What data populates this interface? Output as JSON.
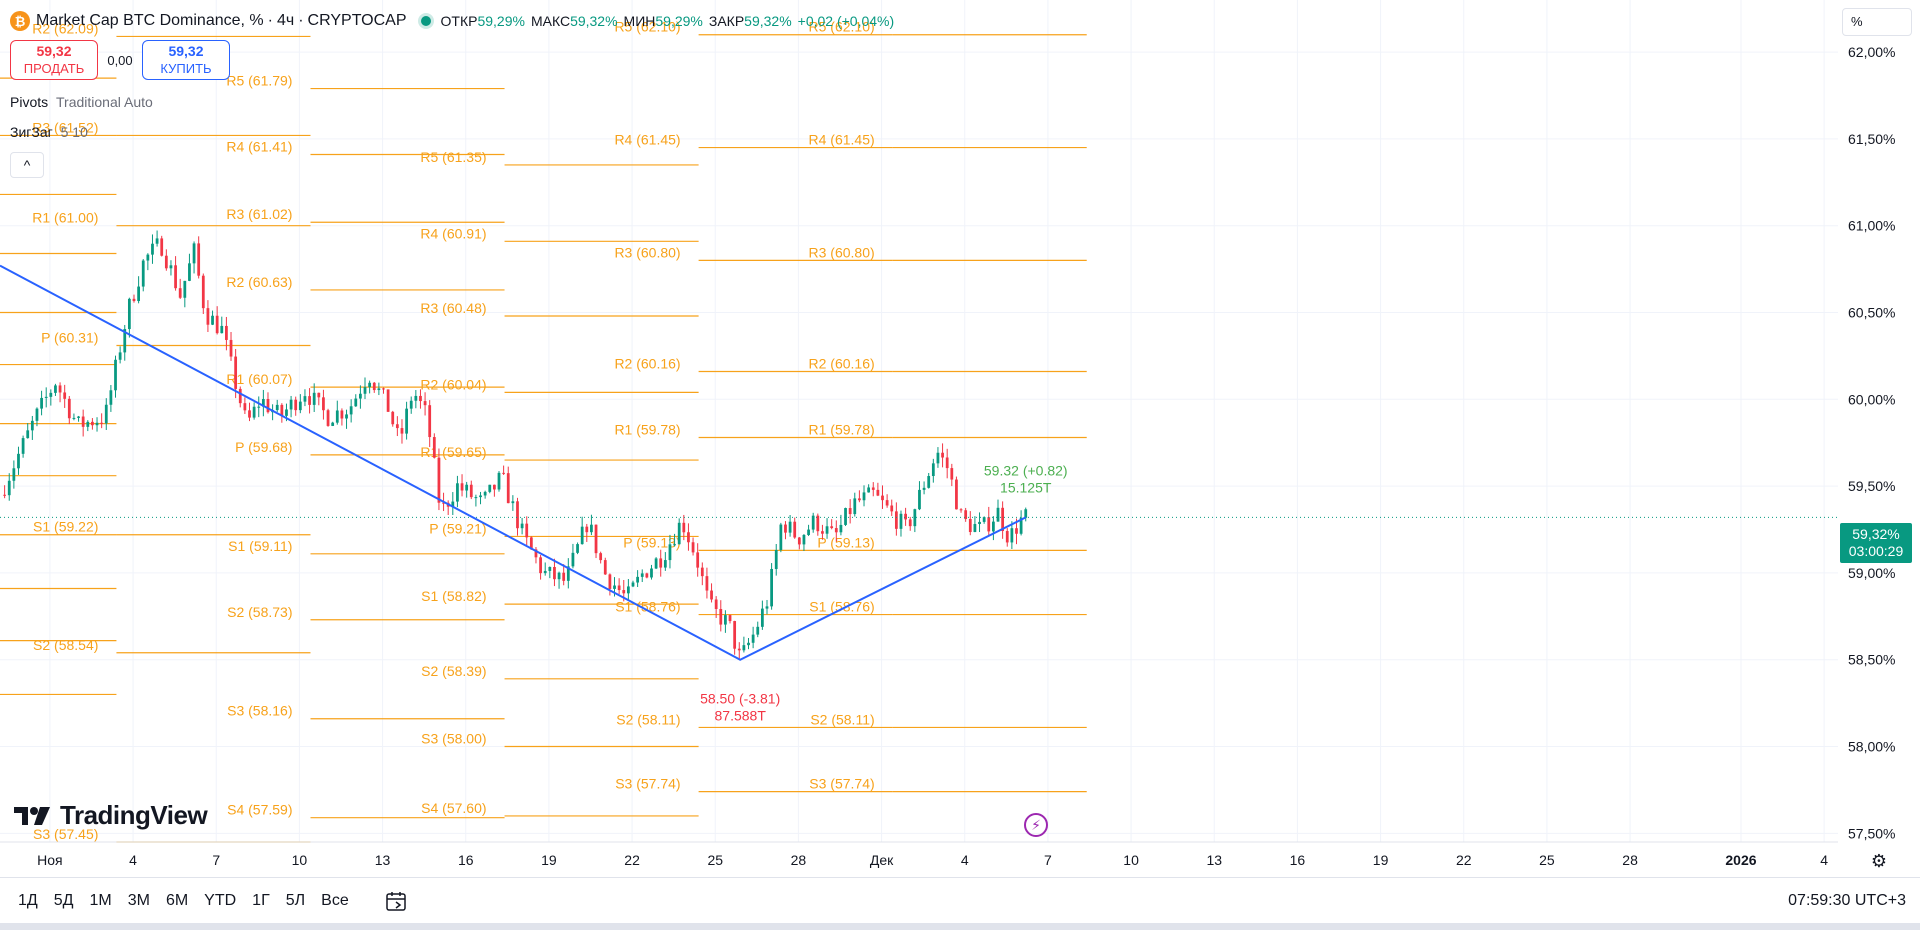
{
  "header": {
    "title": "Market Cap BTC Dominance, %",
    "dot": "·",
    "interval": "4ч",
    "exchange": "CRYPTOCAP",
    "icon_letter": "₿",
    "ohlc": [
      {
        "label": "ОТКР",
        "value": "59,29%"
      },
      {
        "label": "МАКС",
        "value": "59,32%"
      },
      {
        "label": "МИН",
        "value": "59,29%"
      },
      {
        "label": "ЗАКР",
        "value": "59,32%"
      }
    ],
    "change": "+0,02 (+0,04%)"
  },
  "trade": {
    "sell_price": "59,32",
    "sell_label": "ПРОДАТЬ",
    "spread": "0,00",
    "buy_price": "59,32",
    "buy_label": "КУПИТЬ"
  },
  "indicators": [
    {
      "name": "Pivots",
      "params": "Traditional Auto"
    },
    {
      "name": "ЗигЗаг",
      "params": "5 10"
    }
  ],
  "collapse_glyph": "^",
  "price_scale": {
    "unit": "%",
    "current_price": "59,32%",
    "countdown": "03:00:29"
  },
  "colors": {
    "up": "#089981",
    "down": "#f23645",
    "pivot": "#f7a21b",
    "zigzag": "#2962ff",
    "label_green": "#4caf50",
    "label_red": "#f23645"
  },
  "logo_text": "TradingView",
  "bottom_bar": {
    "ranges": [
      "1Д",
      "5Д",
      "1М",
      "3М",
      "6М",
      "YTD",
      "1Г",
      "5Л",
      "Все"
    ],
    "clock": "07:59:30 UTC+3"
  },
  "chart_data": {
    "type": "candlestick",
    "title": "Market Cap BTC Dominance, %",
    "ylim": [
      57.45,
      62.3
    ],
    "y_ticks": [
      "62,00%",
      "61,50%",
      "61,00%",
      "60,50%",
      "60,00%",
      "59,50%",
      "59,00%",
      "58,50%",
      "58,00%",
      "57,50%"
    ],
    "y_tick_values": [
      62.0,
      61.5,
      61.0,
      60.5,
      60.0,
      59.5,
      59.0,
      58.5,
      58.0,
      57.5
    ],
    "x_ticks": [
      "Ноя",
      "4",
      "7",
      "10",
      "13",
      "16",
      "19",
      "22",
      "25",
      "28",
      "Дек",
      "4",
      "7",
      "10",
      "13",
      "16",
      "19",
      "22",
      "25",
      "28",
      "2026",
      "4"
    ],
    "x_tick_days": [
      1,
      4,
      7,
      10,
      13,
      16,
      19,
      22,
      25,
      28,
      31,
      34,
      37,
      40,
      43,
      46,
      49,
      52,
      55,
      58,
      62,
      65
    ],
    "x_domain_days": [
      -0.8,
      65.5
    ],
    "current_price": 59.32,
    "close_path_day_price": [
      [
        -0.8,
        59.45
      ],
      [
        0.5,
        59.9
      ],
      [
        1.2,
        60.1
      ],
      [
        2,
        59.85
      ],
      [
        3,
        59.9
      ],
      [
        3.8,
        60.5
      ],
      [
        4.4,
        60.8
      ],
      [
        5,
        60.9
      ],
      [
        5.7,
        60.6
      ],
      [
        6.2,
        60.85
      ],
      [
        6.6,
        60.5
      ],
      [
        7.2,
        60.4
      ],
      [
        7.6,
        60.15
      ],
      [
        8.1,
        59.85
      ],
      [
        8.6,
        60.0
      ],
      [
        9.3,
        59.9
      ],
      [
        10.2,
        60.05
      ],
      [
        11,
        59.9
      ],
      [
        11.8,
        59.95
      ],
      [
        12.5,
        60.15
      ],
      [
        13.2,
        59.95
      ],
      [
        13.6,
        59.75
      ],
      [
        14.1,
        60.05
      ],
      [
        14.6,
        59.9
      ],
      [
        15.1,
        59.35
      ],
      [
        15.7,
        59.5
      ],
      [
        16.6,
        59.4
      ],
      [
        17.3,
        59.55
      ],
      [
        18.1,
        59.2
      ],
      [
        18.8,
        59.0
      ],
      [
        19.6,
        58.95
      ],
      [
        20.4,
        59.3
      ],
      [
        21.0,
        59.0
      ],
      [
        21.8,
        58.85
      ],
      [
        22.4,
        59.0
      ],
      [
        23.1,
        59.1
      ],
      [
        23.8,
        59.3
      ],
      [
        24.3,
        59.1
      ],
      [
        24.8,
        58.8
      ],
      [
        25.5,
        58.7
      ],
      [
        25.9,
        58.5
      ],
      [
        26.4,
        58.65
      ],
      [
        26.9,
        58.85
      ],
      [
        27.4,
        59.3
      ],
      [
        28.0,
        59.2
      ],
      [
        28.6,
        59.3
      ],
      [
        29.3,
        59.2
      ],
      [
        30.0,
        59.4
      ],
      [
        30.7,
        59.45
      ],
      [
        31.3,
        59.35
      ],
      [
        31.9,
        59.25
      ],
      [
        32.5,
        59.5
      ],
      [
        33.0,
        59.7
      ],
      [
        33.4,
        59.6
      ],
      [
        33.9,
        59.3
      ],
      [
        34.6,
        59.25
      ],
      [
        35.2,
        59.35
      ],
      [
        35.6,
        59.2
      ],
      [
        36.0,
        59.3
      ],
      [
        36.2,
        59.32
      ]
    ],
    "zigzag": [
      {
        "day": -0.8,
        "price": 60.77
      },
      {
        "day": 25.9,
        "price": 58.5,
        "label": "58.50 (-3.81)",
        "volume": "87.588T"
      },
      {
        "day": 36.2,
        "price": 59.32,
        "label": "59.32 (+0.82)",
        "volume": "15.125T"
      }
    ],
    "pivot_periods": [
      {
        "start_day": -0.8,
        "end_day": 3.4,
        "levels": [
          {
            "name": "R2",
            "value": 61.85
          },
          {
            "name": "R1",
            "value": 61.52
          },
          {
            "name": "R4",
            "value": 61.18
          },
          {
            "name": "R3",
            "value": 60.84
          },
          {
            "name": "R2",
            "value": 60.5
          },
          {
            "name": "R1",
            "value": 60.2
          },
          {
            "name": "P",
            "value": 59.86
          },
          {
            "name": "S1",
            "value": 59.56
          },
          {
            "name": "S2",
            "value": 59.22
          },
          {
            "name": "S3",
            "value": 58.91
          },
          {
            "name": "S4",
            "value": 58.61
          },
          {
            "name": "S5",
            "value": 58.3
          }
        ]
      },
      {
        "start_day": 3.4,
        "end_day": 10.4,
        "levels": [
          {
            "name": "R2",
            "value": 62.09
          },
          {
            "name": "R3",
            "value": 61.52
          },
          {
            "name": "R1",
            "value": 61.0
          },
          {
            "name": "P",
            "value": 60.31
          },
          {
            "name": "S1",
            "value": 59.22
          },
          {
            "name": "S2",
            "value": 58.54
          },
          {
            "name": "S3",
            "value": 57.45
          }
        ]
      },
      {
        "start_day": 10.4,
        "end_day": 17.4,
        "levels": [
          {
            "name": "R5",
            "value": 61.79
          },
          {
            "name": "R4",
            "value": 61.41
          },
          {
            "name": "R3",
            "value": 61.02
          },
          {
            "name": "R2",
            "value": 60.63
          },
          {
            "name": "R1",
            "value": 60.07
          },
          {
            "name": "P",
            "value": 59.68
          },
          {
            "name": "S1",
            "value": 59.11
          },
          {
            "name": "S2",
            "value": 58.73
          },
          {
            "name": "S3",
            "value": 58.16
          },
          {
            "name": "S4",
            "value": 57.59
          }
        ]
      },
      {
        "start_day": 17.4,
        "end_day": 24.4,
        "levels": [
          {
            "name": "R5",
            "value": 61.35
          },
          {
            "name": "R4",
            "value": 60.91
          },
          {
            "name": "R3",
            "value": 60.48
          },
          {
            "name": "R2",
            "value": 60.04
          },
          {
            "name": "R1",
            "value": 59.65
          },
          {
            "name": "P",
            "value": 59.21
          },
          {
            "name": "S1",
            "value": 58.82
          },
          {
            "name": "S2",
            "value": 58.39
          },
          {
            "name": "S3",
            "value": 58.0
          },
          {
            "name": "S4",
            "value": 57.6
          }
        ]
      },
      {
        "start_day": 24.4,
        "end_day": 31.4,
        "levels": [
          {
            "name": "R5",
            "value": 62.1
          },
          {
            "name": "R4",
            "value": 61.45
          },
          {
            "name": "R3",
            "value": 60.8
          },
          {
            "name": "R2",
            "value": 60.16
          },
          {
            "name": "R1",
            "value": 59.78
          },
          {
            "name": "P",
            "value": 59.13
          },
          {
            "name": "S1",
            "value": 58.76
          },
          {
            "name": "S2",
            "value": 58.11
          },
          {
            "name": "S3",
            "value": 57.74
          }
        ]
      },
      {
        "start_day": 31.4,
        "end_day": 38.4,
        "levels": [
          {
            "name": "R5",
            "value": 62.1
          },
          {
            "name": "R4",
            "value": 61.45
          },
          {
            "name": "R3",
            "value": 60.8
          },
          {
            "name": "R2",
            "value": 60.16
          },
          {
            "name": "R1",
            "value": 59.78
          },
          {
            "name": "P",
            "value": 59.13
          },
          {
            "name": "S1",
            "value": 58.76
          },
          {
            "name": "S2",
            "value": 58.11
          },
          {
            "name": "S3",
            "value": 57.74
          }
        ]
      }
    ]
  }
}
